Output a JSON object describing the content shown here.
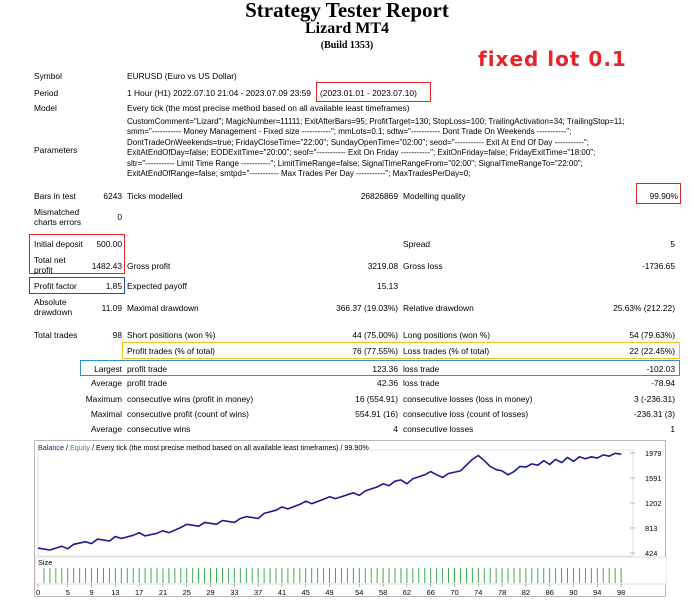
{
  "header": {
    "title": "Strategy Tester Report",
    "subtitle": "Lizard MT4",
    "build": "(Build 1353)",
    "annotation": "fixed lot 0.1"
  },
  "info": {
    "symbol_label": "Symbol",
    "symbol_value": "EURUSD (Euro vs US Dollar)",
    "period_label": "Period",
    "period_value": "1 Hour (H1) 2022.07.10 21:04 - 2023.07.09 23:59",
    "period_range": "(2023.01.01 - 2023.07.10)",
    "model_label": "Model",
    "model_value": "Every tick (the most precise method based on all available least timeframes)",
    "parameters_label": "Parameters",
    "parameters_lines": [
      "CustomComment=\"Lizard\"; MagicNumber=11111; ExitAfterBars=95; ProfitTarget=130; StopLoss=100; TrailingActivation=34; TrailingStop=11;",
      "smm=\"----------- Money Management - Fixed size -----------\"; mmLots=0.1; sdtw=\"----------- Dont Trade On Weekends -----------\";",
      "DontTradeOnWeekends=true; FridayCloseTime=\"22:00\"; SundayOpenTime=\"02:00\"; seod=\"----------- Exit At End Of Day -----------\";",
      "ExitAtEndOfDay=false; EODExitTime=\"20:00\"; seof=\"----------- Exit On Friday -----------\"; ExitOnFriday=false; FridayExitTime=\"18:00\";",
      "sltr=\"----------- Limit Time Range -----------\"; LimitTimeRange=false; SignalTimeRangeFrom=\"02:00\"; SignalTimeRangeTo=\"22:00\";",
      "ExitAtEndOfRange=false; smtpd=\"----------- Max Trades Per Day -----------\"; MaxTradesPerDay=0;"
    ]
  },
  "stats": {
    "bars_label": "Bars in test",
    "bars_value": "6243",
    "ticks_label": "Ticks modelled",
    "ticks_value": "26826869",
    "quality_label": "Modelling quality",
    "quality_value": "99.90%",
    "mismatched_label_1": "Mismatched",
    "mismatched_label_2": "charts errors",
    "mismatched_value": "0",
    "deposit_label": "Initial deposit",
    "deposit_value": "500.00",
    "spread_label": "Spread",
    "spread_value": "5",
    "netprofit_label_1": "Total net",
    "netprofit_label_2": "profit",
    "netprofit_value": "1482.43",
    "grossprofit_label": "Gross profit",
    "grossprofit_value": "3219.08",
    "grossloss_label": "Gross loss",
    "grossloss_value": "-1736.65",
    "pf_label": "Profit factor",
    "pf_value": "1.85",
    "payoff_label": "Expected payoff",
    "payoff_value": "15.13",
    "absdd_label_1": "Absolute",
    "absdd_label_2": "drawdown",
    "absdd_value": "11.09",
    "maxdd_label": "Maximal drawdown",
    "maxdd_value": "366.37 (19.03%)",
    "reldd_label": "Relative drawdown",
    "reldd_value": "25.63% (212.22)",
    "trades_label": "Total trades",
    "trades_value": "98",
    "short_label": "Short positions (won %)",
    "short_value": "44 (75.00%)",
    "long_label": "Long positions (won %)",
    "long_value": "54 (79.63%)",
    "profit_trades_label": "Profit trades (% of total)",
    "profit_trades_value": "76 (77.55%)",
    "loss_trades_label": "Loss trades (% of total)",
    "loss_trades_value": "22 (22.45%)",
    "largest_label": "Largest",
    "largest_profit_label": "profit trade",
    "largest_profit_value": "123.36",
    "largest_loss_label": "loss trade",
    "largest_loss_value": "-102.03",
    "average_label": "Average",
    "average_profit_label": "profit trade",
    "average_profit_value": "42.36",
    "average_loss_label": "loss trade",
    "average_loss_value": "-78.94",
    "maximum_label": "Maximum",
    "max_cw_label": "consecutive wins (profit in money)",
    "max_cw_value": "16 (554.91)",
    "max_cl_label": "consecutive losses (loss in money)",
    "max_cl_value": "3 (-236.31)",
    "maximal_label": "Maximal",
    "mxl_cp_label": "consecutive profit (count of wins)",
    "mxl_cp_value": "554.91 (16)",
    "mxl_cl_label": "consecutive loss (count of losses)",
    "mxl_cl_value": "-236.31 (3)",
    "avg2_label": "Average",
    "avg_cw_label": "consecutive wins",
    "avg_cw_value": "4",
    "avg_cl_label": "consecutive losses",
    "avg_cl_value": "1"
  },
  "chart_data": {
    "type": "line",
    "legend_balance": "Balance",
    "legend_sep": " / ",
    "legend_equity": "Equity",
    "legend_rest": " / Every tick (the most precise method based on all available least timeframes) / 99.90%",
    "y_ticks": [
      "1979",
      "1591",
      "1202",
      "813",
      "424"
    ],
    "ylim": [
      424,
      1979
    ],
    "x_ticks": [
      "0",
      "5",
      "9",
      "13",
      "17",
      "21",
      "25",
      "29",
      "33",
      "37",
      "41",
      "45",
      "49",
      "54",
      "58",
      "62",
      "66",
      "70",
      "74",
      "78",
      "82",
      "86",
      "90",
      "94",
      "98"
    ],
    "xlim": [
      0,
      100
    ],
    "size_label": "Size",
    "balance_color": "#1a1a8f",
    "equity_color": "#2ea043",
    "balance": [
      [
        0,
        500
      ],
      [
        2,
        470
      ],
      [
        4,
        530
      ],
      [
        5,
        490
      ],
      [
        6,
        560
      ],
      [
        8,
        600
      ],
      [
        9,
        570
      ],
      [
        10,
        640
      ],
      [
        12,
        610
      ],
      [
        13,
        680
      ],
      [
        14,
        650
      ],
      [
        16,
        700
      ],
      [
        17,
        740
      ],
      [
        18,
        690
      ],
      [
        20,
        730
      ],
      [
        21,
        770
      ],
      [
        22,
        740
      ],
      [
        24,
        820
      ],
      [
        25,
        870
      ],
      [
        27,
        840
      ],
      [
        28,
        900
      ],
      [
        30,
        870
      ],
      [
        31,
        930
      ],
      [
        33,
        900
      ],
      [
        34,
        960
      ],
      [
        35,
        990
      ],
      [
        37,
        960
      ],
      [
        38,
        1040
      ],
      [
        40,
        1090
      ],
      [
        41,
        1140
      ],
      [
        42,
        1110
      ],
      [
        44,
        1180
      ],
      [
        45,
        1230
      ],
      [
        46,
        1190
      ],
      [
        48,
        1260
      ],
      [
        49,
        1300
      ],
      [
        50,
        1270
      ],
      [
        52,
        1330
      ],
      [
        53,
        1360
      ],
      [
        54,
        1320
      ],
      [
        55,
        1390
      ],
      [
        57,
        1450
      ],
      [
        58,
        1500
      ],
      [
        59,
        1470
      ],
      [
        60,
        1540
      ],
      [
        61,
        1560
      ],
      [
        62,
        1500
      ],
      [
        63,
        1580
      ],
      [
        65,
        1640
      ],
      [
        66,
        1690
      ],
      [
        67,
        1640
      ],
      [
        68,
        1600
      ],
      [
        69,
        1660
      ],
      [
        71,
        1700
      ],
      [
        72,
        1790
      ],
      [
        73,
        1880
      ],
      [
        74,
        1940
      ],
      [
        75,
        1860
      ],
      [
        76,
        1770
      ],
      [
        77,
        1720
      ],
      [
        78,
        1700
      ],
      [
        79,
        1640
      ],
      [
        80,
        1690
      ],
      [
        81,
        1770
      ],
      [
        82,
        1760
      ],
      [
        83,
        1810
      ],
      [
        84,
        1790
      ],
      [
        85,
        1860
      ],
      [
        86,
        1800
      ],
      [
        87,
        1880
      ],
      [
        88,
        1830
      ],
      [
        89,
        1910
      ],
      [
        90,
        1850
      ],
      [
        91,
        1920
      ],
      [
        92,
        1890
      ],
      [
        93,
        1920
      ],
      [
        94,
        1900
      ],
      [
        95,
        1950
      ],
      [
        96,
        1930
      ],
      [
        97,
        1975
      ],
      [
        98,
        1960
      ]
    ]
  }
}
